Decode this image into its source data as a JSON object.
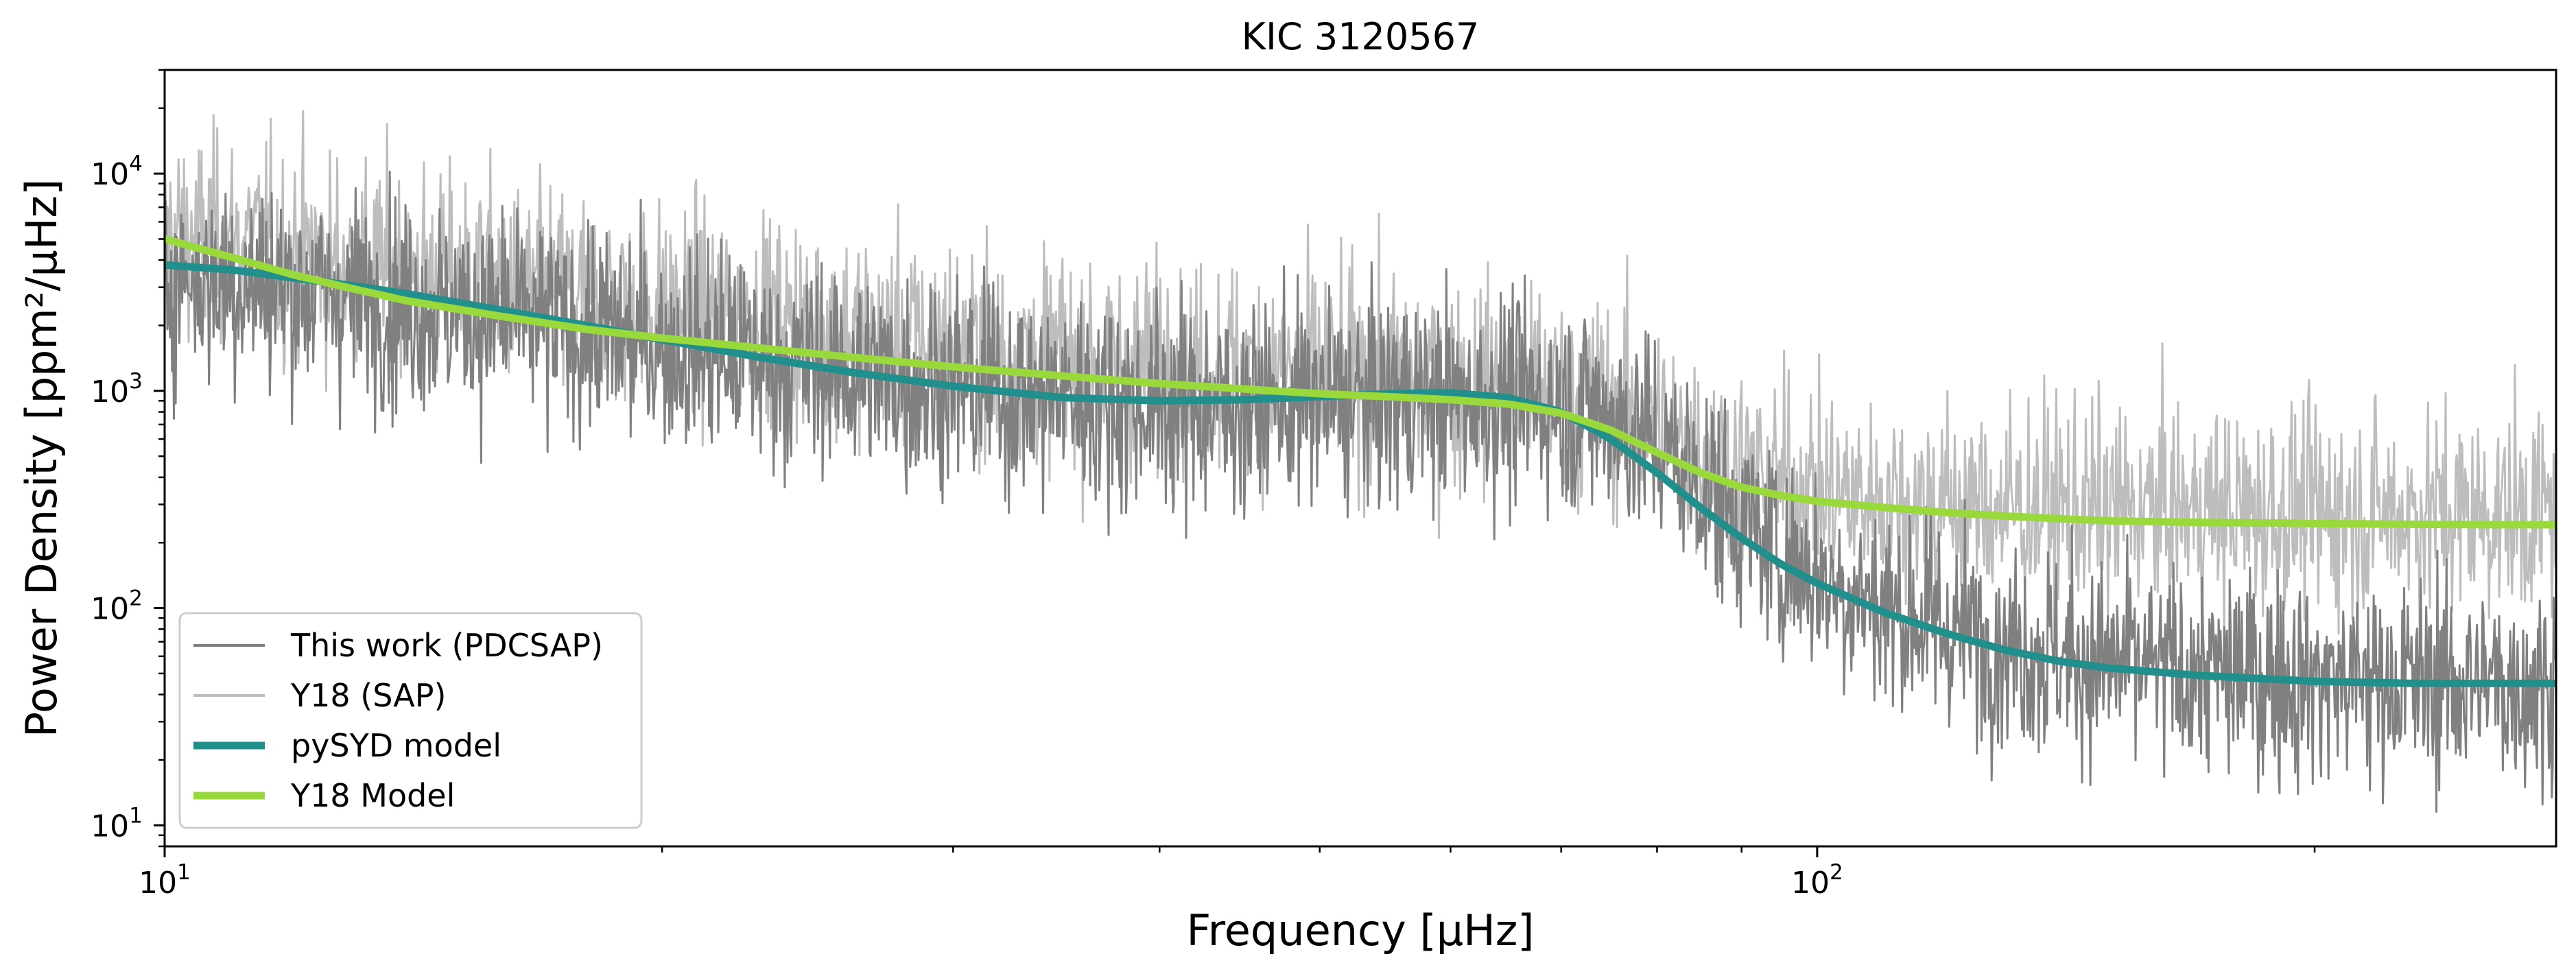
{
  "chart_data": {
    "type": "line",
    "title": "KIC 3120567",
    "xlabel": "Frequency [μHz]",
    "ylabel": "Power Density [ppm²/μHz]",
    "xscale": "log",
    "yscale": "log",
    "xlim": [
      10,
      280
    ],
    "ylim": [
      8,
      30000
    ],
    "x_major_ticks": [
      {
        "value": 10,
        "base": "10",
        "exp": "1"
      },
      {
        "value": 100,
        "base": "10",
        "exp": "2"
      }
    ],
    "y_major_ticks": [
      {
        "value": 10,
        "base": "10",
        "exp": "1"
      },
      {
        "value": 100,
        "base": "10",
        "exp": "2"
      },
      {
        "value": 1000,
        "base": "10",
        "exp": "3"
      },
      {
        "value": 10000,
        "base": "10",
        "exp": "4"
      }
    ],
    "legend_position": "lower-left",
    "grid": false,
    "series": [
      {
        "name": "This work (PDCSAP)",
        "kind": "noisy",
        "color": "#808080",
        "linewidth": 3,
        "x": [
          10,
          11,
          12,
          14,
          16,
          18,
          20,
          23,
          26,
          30,
          35,
          40,
          45,
          50,
          55,
          60,
          65,
          70,
          75,
          80,
          85,
          90,
          95,
          100,
          110,
          120,
          135,
          150,
          170,
          200,
          230,
          260,
          280
        ],
        "mean": [
          3400,
          3200,
          2950,
          2500,
          2150,
          1850,
          1600,
          1380,
          1220,
          1050,
          930,
          860,
          850,
          870,
          900,
          920,
          910,
          870,
          760,
          560,
          380,
          250,
          175,
          140,
          100,
          80,
          65,
          55,
          50,
          47,
          46,
          45,
          45
        ]
      },
      {
        "name": "Y18 (SAP)",
        "kind": "noisy",
        "color": "#bdbdbd",
        "linewidth": 3,
        "x": [
          10,
          11,
          12,
          14,
          16,
          18,
          20,
          23,
          26,
          30,
          35,
          40,
          45,
          50,
          55,
          60,
          65,
          70,
          75,
          80,
          85,
          90,
          95,
          100,
          110,
          120,
          135,
          150,
          170,
          200,
          230,
          260,
          280
        ],
        "mean": [
          5200,
          4800,
          4300,
          3600,
          3100,
          2700,
          2400,
          2100,
          1850,
          1650,
          1450,
          1320,
          1250,
          1200,
          1150,
          1100,
          1050,
          960,
          850,
          680,
          540,
          440,
          380,
          340,
          310,
          300,
          290,
          285,
          280,
          275,
          275,
          275,
          275
        ]
      },
      {
        "name": "pySYD model",
        "kind": "smooth",
        "color": "#21908d",
        "linewidth": 11,
        "x": [
          10,
          11,
          12,
          13,
          14,
          16,
          18,
          20,
          23,
          26,
          30,
          35,
          40,
          45,
          50,
          55,
          60,
          65,
          70,
          75,
          80,
          85,
          90,
          95,
          100,
          110,
          120,
          130,
          140,
          150,
          170,
          200,
          230,
          260,
          280
        ],
        "y": [
          3800,
          3600,
          3300,
          3050,
          2800,
          2350,
          2000,
          1720,
          1420,
          1220,
          1050,
          930,
          900,
          910,
          940,
          970,
          980,
          930,
          800,
          600,
          420,
          290,
          210,
          160,
          130,
          95,
          76,
          64,
          57,
          53,
          49,
          46,
          45,
          45,
          45
        ]
      },
      {
        "name": "Y18 Model",
        "kind": "smooth",
        "color": "#9ad93c",
        "linewidth": 11,
        "x": [
          10,
          11,
          12,
          13,
          14,
          16,
          18,
          20,
          23,
          26,
          30,
          35,
          40,
          45,
          50,
          55,
          60,
          65,
          70,
          75,
          80,
          85,
          90,
          95,
          100,
          110,
          120,
          130,
          140,
          150,
          170,
          200,
          230,
          260,
          280
        ],
        "y": [
          5000,
          4100,
          3400,
          2950,
          2600,
          2200,
          1920,
          1750,
          1570,
          1430,
          1290,
          1170,
          1080,
          1020,
          970,
          940,
          910,
          870,
          790,
          660,
          520,
          420,
          360,
          330,
          310,
          290,
          275,
          265,
          258,
          252,
          248,
          245,
          243,
          242,
          242
        ]
      }
    ]
  }
}
